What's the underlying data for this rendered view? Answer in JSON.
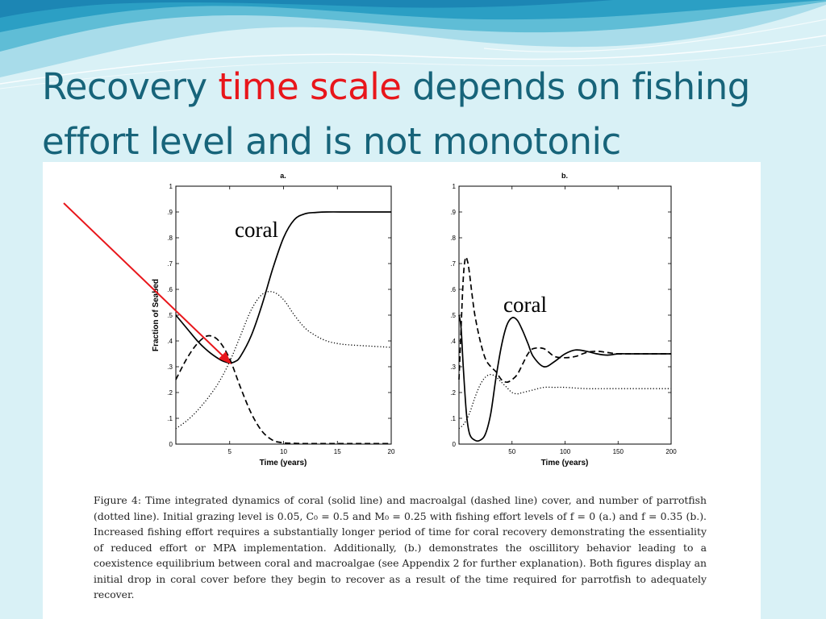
{
  "slide": {
    "title_part1": "Recovery ",
    "title_highlight": "time scale",
    "title_part2": " depends on fishing effort level and is not monotonic",
    "title_color": "#17647a",
    "highlight_color": "#e8161b",
    "background_color": "#d9f1f6"
  },
  "arrow": {
    "color": "#e8161b"
  },
  "caption": "Figure 4: Time integrated dynamics of coral (solid line) and macroalgal (dashed line) cover, and number of parrotfish (dotted line). Initial grazing level is 0.05, C₀ = 0.5 and M₀ = 0.25 with fishing effort levels of f = 0 (a.) and f = 0.35 (b.). Increased fishing effort requires a substantially longer period of time for coral recovery demonstrating the essentiality of reduced effort or MPA implementation. Additionally, (b.) demonstrates the oscillitory behavior leading to a coexistence equilibrium between coral and macroalgae (see Appendix 2 for further explanation). Both figures display an initial drop in coral cover before they begin to recover as a result of the time required for parrotfish to adequately recover.",
  "chart_data": [
    {
      "type": "line",
      "title": "a.",
      "xlabel": "Time (years)",
      "ylabel": "Fraction of Seabed",
      "xlim": [
        0,
        20
      ],
      "ylim": [
        0,
        1
      ],
      "xticks": [
        5,
        10,
        15,
        20
      ],
      "yticks": [
        0,
        0.1,
        0.2,
        0.3,
        0.4,
        0.5,
        0.6,
        0.7,
        0.8,
        0.9,
        1
      ],
      "grid": false,
      "annotation": "coral",
      "series": [
        {
          "style": "solid",
          "x": [
            0,
            1,
            2,
            3,
            4,
            4.5,
            5,
            5.5,
            6,
            7,
            8,
            9,
            10,
            11,
            12,
            13,
            14,
            16,
            18,
            20
          ],
          "y": [
            0.5,
            0.45,
            0.4,
            0.36,
            0.33,
            0.32,
            0.315,
            0.32,
            0.34,
            0.42,
            0.54,
            0.68,
            0.8,
            0.87,
            0.893,
            0.898,
            0.9,
            0.9,
            0.9,
            0.9
          ]
        },
        {
          "style": "dashed",
          "x": [
            0,
            1,
            2,
            3,
            4,
            5,
            6,
            7,
            8,
            9,
            10,
            11,
            12,
            14,
            16,
            18,
            20
          ],
          "y": [
            0.25,
            0.33,
            0.39,
            0.42,
            0.4,
            0.33,
            0.22,
            0.12,
            0.05,
            0.015,
            0.005,
            0.003,
            0.002,
            0.002,
            0.002,
            0.002,
            0.002
          ]
        },
        {
          "style": "dotted",
          "x": [
            0,
            1,
            2,
            3,
            4,
            5,
            6,
            7,
            8,
            9,
            10,
            11,
            12,
            13,
            14,
            15,
            16,
            18,
            20
          ],
          "y": [
            0.06,
            0.09,
            0.13,
            0.18,
            0.24,
            0.32,
            0.42,
            0.52,
            0.58,
            0.59,
            0.56,
            0.5,
            0.45,
            0.42,
            0.4,
            0.39,
            0.385,
            0.38,
            0.375
          ]
        }
      ]
    },
    {
      "type": "line",
      "title": "b.",
      "xlabel": "Time (years)",
      "ylabel": "",
      "xlim": [
        0,
        200
      ],
      "ylim": [
        0,
        1
      ],
      "xticks": [
        50,
        100,
        150,
        200
      ],
      "yticks": [
        0,
        0.1,
        0.2,
        0.3,
        0.4,
        0.5,
        0.6,
        0.7,
        0.8,
        0.9,
        1
      ],
      "grid": false,
      "annotation": "coral",
      "series": [
        {
          "style": "solid",
          "x": [
            0,
            2,
            4,
            7,
            10,
            15,
            20,
            25,
            30,
            35,
            40,
            45,
            50,
            55,
            60,
            65,
            70,
            80,
            90,
            100,
            110,
            120,
            130,
            140,
            150,
            160,
            170,
            180,
            200
          ],
          "y": [
            0.5,
            0.45,
            0.3,
            0.12,
            0.04,
            0.015,
            0.015,
            0.04,
            0.12,
            0.26,
            0.38,
            0.46,
            0.49,
            0.48,
            0.44,
            0.39,
            0.34,
            0.3,
            0.32,
            0.35,
            0.365,
            0.36,
            0.35,
            0.345,
            0.35,
            0.35,
            0.35,
            0.35,
            0.35
          ]
        },
        {
          "style": "dashed",
          "x": [
            0,
            2,
            4,
            6,
            8,
            10,
            12,
            15,
            20,
            25,
            30,
            35,
            40,
            45,
            50,
            55,
            60,
            65,
            70,
            80,
            90,
            100,
            110,
            120,
            130,
            140,
            150,
            160,
            170,
            180,
            200
          ],
          "y": [
            0.25,
            0.45,
            0.64,
            0.72,
            0.71,
            0.66,
            0.59,
            0.5,
            0.4,
            0.33,
            0.3,
            0.28,
            0.25,
            0.24,
            0.25,
            0.27,
            0.31,
            0.35,
            0.37,
            0.37,
            0.34,
            0.335,
            0.34,
            0.355,
            0.36,
            0.355,
            0.35,
            0.35,
            0.35,
            0.35,
            0.35
          ]
        },
        {
          "style": "dotted",
          "x": [
            0,
            5,
            10,
            15,
            20,
            25,
            30,
            35,
            40,
            45,
            50,
            55,
            60,
            70,
            80,
            90,
            100,
            120,
            140,
            160,
            180,
            200
          ],
          "y": [
            0.06,
            0.08,
            0.12,
            0.18,
            0.23,
            0.26,
            0.27,
            0.26,
            0.24,
            0.22,
            0.2,
            0.195,
            0.2,
            0.21,
            0.22,
            0.22,
            0.22,
            0.215,
            0.215,
            0.215,
            0.215,
            0.215
          ]
        }
      ]
    }
  ]
}
